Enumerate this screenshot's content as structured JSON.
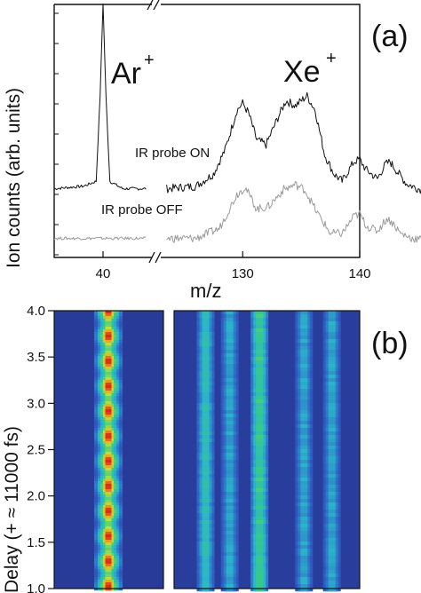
{
  "panels": [
    {
      "label": "(a)",
      "chart_data": {
        "type": "line",
        "xlabel": "m/z",
        "ylabel": "Ion counts (arb. units)",
        "x_ticks_left": [
          40
        ],
        "x_ticks_right": [
          130,
          140
        ],
        "xlim_left": [
          35,
          45
        ],
        "xlim_right": [
          123,
          140
        ],
        "axis_break": true,
        "grid": false,
        "annotations": [
          "Ar",
          "+",
          "Xe",
          "+"
        ],
        "series": [
          {
            "name": "IR probe ON",
            "color": "#111111",
            "points": [
              [
                35,
                0.02
              ],
              [
                38,
                0.03
              ],
              [
                39.3,
                0.05
              ],
              [
                39.7,
                0.4
              ],
              [
                40,
                0.78
              ],
              [
                40.3,
                0.4
              ],
              [
                40.7,
                0.05
              ],
              [
                42,
                0.02
              ],
              [
                44.5,
                0.02
              ],
              [
                123.5,
                0.02
              ],
              [
                126,
                0.03
              ],
              [
                127.5,
                0.08
              ],
              [
                128.5,
                0.18
              ],
              [
                129.5,
                0.34
              ],
              [
                130,
                0.37
              ],
              [
                130.5,
                0.33
              ],
              [
                131.2,
                0.22
              ],
              [
                132,
                0.2
              ],
              [
                133,
                0.31
              ],
              [
                133.7,
                0.38
              ],
              [
                134.5,
                0.36
              ],
              [
                135.5,
                0.4
              ],
              [
                136.2,
                0.34
              ],
              [
                137,
                0.16
              ],
              [
                137.8,
                0.08
              ],
              [
                138.5,
                0.05
              ],
              [
                139.5,
                0.13
              ],
              [
                140,
                0.14
              ],
              [
                140.5,
                0.1
              ],
              [
                141.5,
                0.06
              ],
              [
                142.2,
                0.12
              ],
              [
                142.6,
                0.13
              ],
              [
                143.2,
                0.09
              ],
              [
                144,
                0.04
              ],
              [
                145,
                0.02
              ],
              [
                146,
                0.01
              ]
            ]
          },
          {
            "name": "IR probe OFF",
            "color": "#9a9a9a",
            "points": [
              [
                35,
                0.02
              ],
              [
                44.5,
                0.02
              ],
              [
                123.5,
                0.02
              ],
              [
                126,
                0.02
              ],
              [
                128,
                0.06
              ],
              [
                129.5,
                0.2
              ],
              [
                130.2,
                0.23
              ],
              [
                131.2,
                0.14
              ],
              [
                132.2,
                0.15
              ],
              [
                133.5,
                0.22
              ],
              [
                134.5,
                0.24
              ],
              [
                135.3,
                0.22
              ],
              [
                136.3,
                0.13
              ],
              [
                137.5,
                0.04
              ],
              [
                138.5,
                0.04
              ],
              [
                139.5,
                0.11
              ],
              [
                140,
                0.12
              ],
              [
                140.6,
                0.07
              ],
              [
                141.5,
                0.05
              ],
              [
                142.3,
                0.1
              ],
              [
                142.7,
                0.09
              ],
              [
                143.5,
                0.04
              ],
              [
                144.5,
                0.02
              ],
              [
                146,
                0.01
              ]
            ]
          }
        ]
      }
    },
    {
      "label": "(b)",
      "chart_data": {
        "type": "heatmap",
        "ylabel": "Delay (+ ≈ 11000 fs)",
        "y_ticks": [
          "1.0",
          "1.5",
          "2.0",
          "2.5",
          "3.0",
          "3.5",
          "4.0"
        ],
        "ylim": [
          1.0,
          4.0
        ],
        "colormap": [
          "#283592",
          "#2f64c8",
          "#2bb7c9",
          "#36c98a",
          "#bfe23a",
          "#f2a41d",
          "#d92a1c"
        ],
        "ar_band": {
          "oscillation_period": 0.27,
          "peak_level": 1.0,
          "min_level": 0.55
        },
        "xe_bands": [
          {
            "center": 0.17,
            "level": 0.38
          },
          {
            "center": 0.3,
            "level": 0.3
          },
          {
            "center": 0.46,
            "level": 0.48
          },
          {
            "center": 0.7,
            "level": 0.3
          },
          {
            "center": 0.85,
            "level": 0.3
          }
        ]
      }
    }
  ]
}
